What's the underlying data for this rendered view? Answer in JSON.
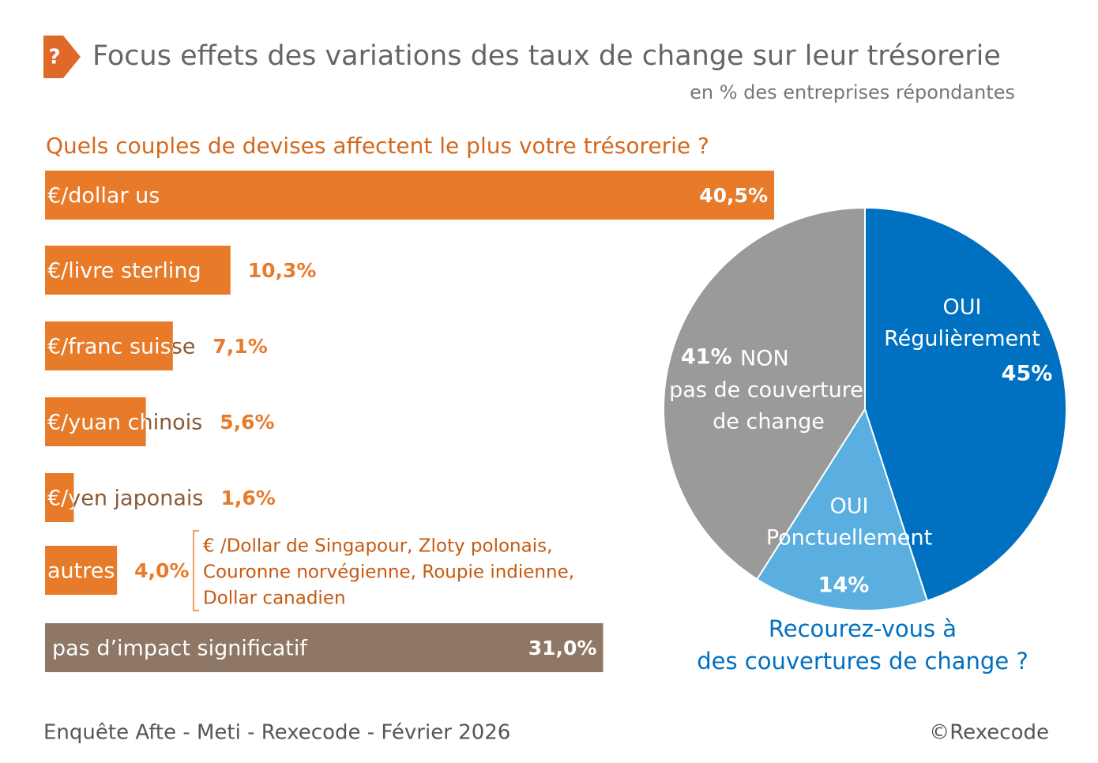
{
  "header": {
    "icon": "?",
    "title": "Focus effets des variations des taux de change sur leur trésorerie",
    "subtitle": "en % des entreprises répondantes"
  },
  "footer": {
    "source": "Enquête Afte - Meti - Rexecode  - Février 2026",
    "copyright": "©Rexecode"
  },
  "chart_data": [
    {
      "type": "bar",
      "orientation": "horizontal",
      "title": "Quels couples de devises affectent le plus votre trésorerie ?",
      "categories": [
        "€/dollar us",
        "€/livre sterling",
        "€/franc suisse",
        "€/yuan chinois",
        "€/yen japonais",
        "autres",
        "pas d’impact significatif"
      ],
      "values": [
        40.5,
        10.3,
        7.1,
        5.6,
        1.6,
        4.0,
        31.0
      ],
      "value_labels": [
        "40,5%",
        "10,3%",
        "7,1%",
        "5,6%",
        "1,6%",
        "4,0%",
        "31,0%"
      ],
      "colors": [
        "#e87b2a",
        "#e87b2a",
        "#e87b2a",
        "#e87b2a",
        "#e87b2a",
        "#e87b2a",
        "#8f7766"
      ],
      "annotation": [
        "€ /Dollar de Singapour, Zloty polonais,",
        "Couronne norvégienne, Roupie indienne,",
        "Dollar canadien"
      ]
    },
    {
      "type": "pie",
      "title": [
        "Recourez-vous à",
        "des couvertures de change ?"
      ],
      "categories": [
        [
          "OUI",
          "Régulièrement"
        ],
        [
          "OUI",
          "Ponctuellement"
        ],
        [
          "NON",
          "pas de couverture",
          "de change"
        ]
      ],
      "values": [
        45,
        14,
        41
      ],
      "value_labels": [
        "45%",
        "14%",
        "41%"
      ],
      "colors": [
        "#0070c0",
        "#5aaee0",
        "#9a9a9a"
      ]
    }
  ]
}
